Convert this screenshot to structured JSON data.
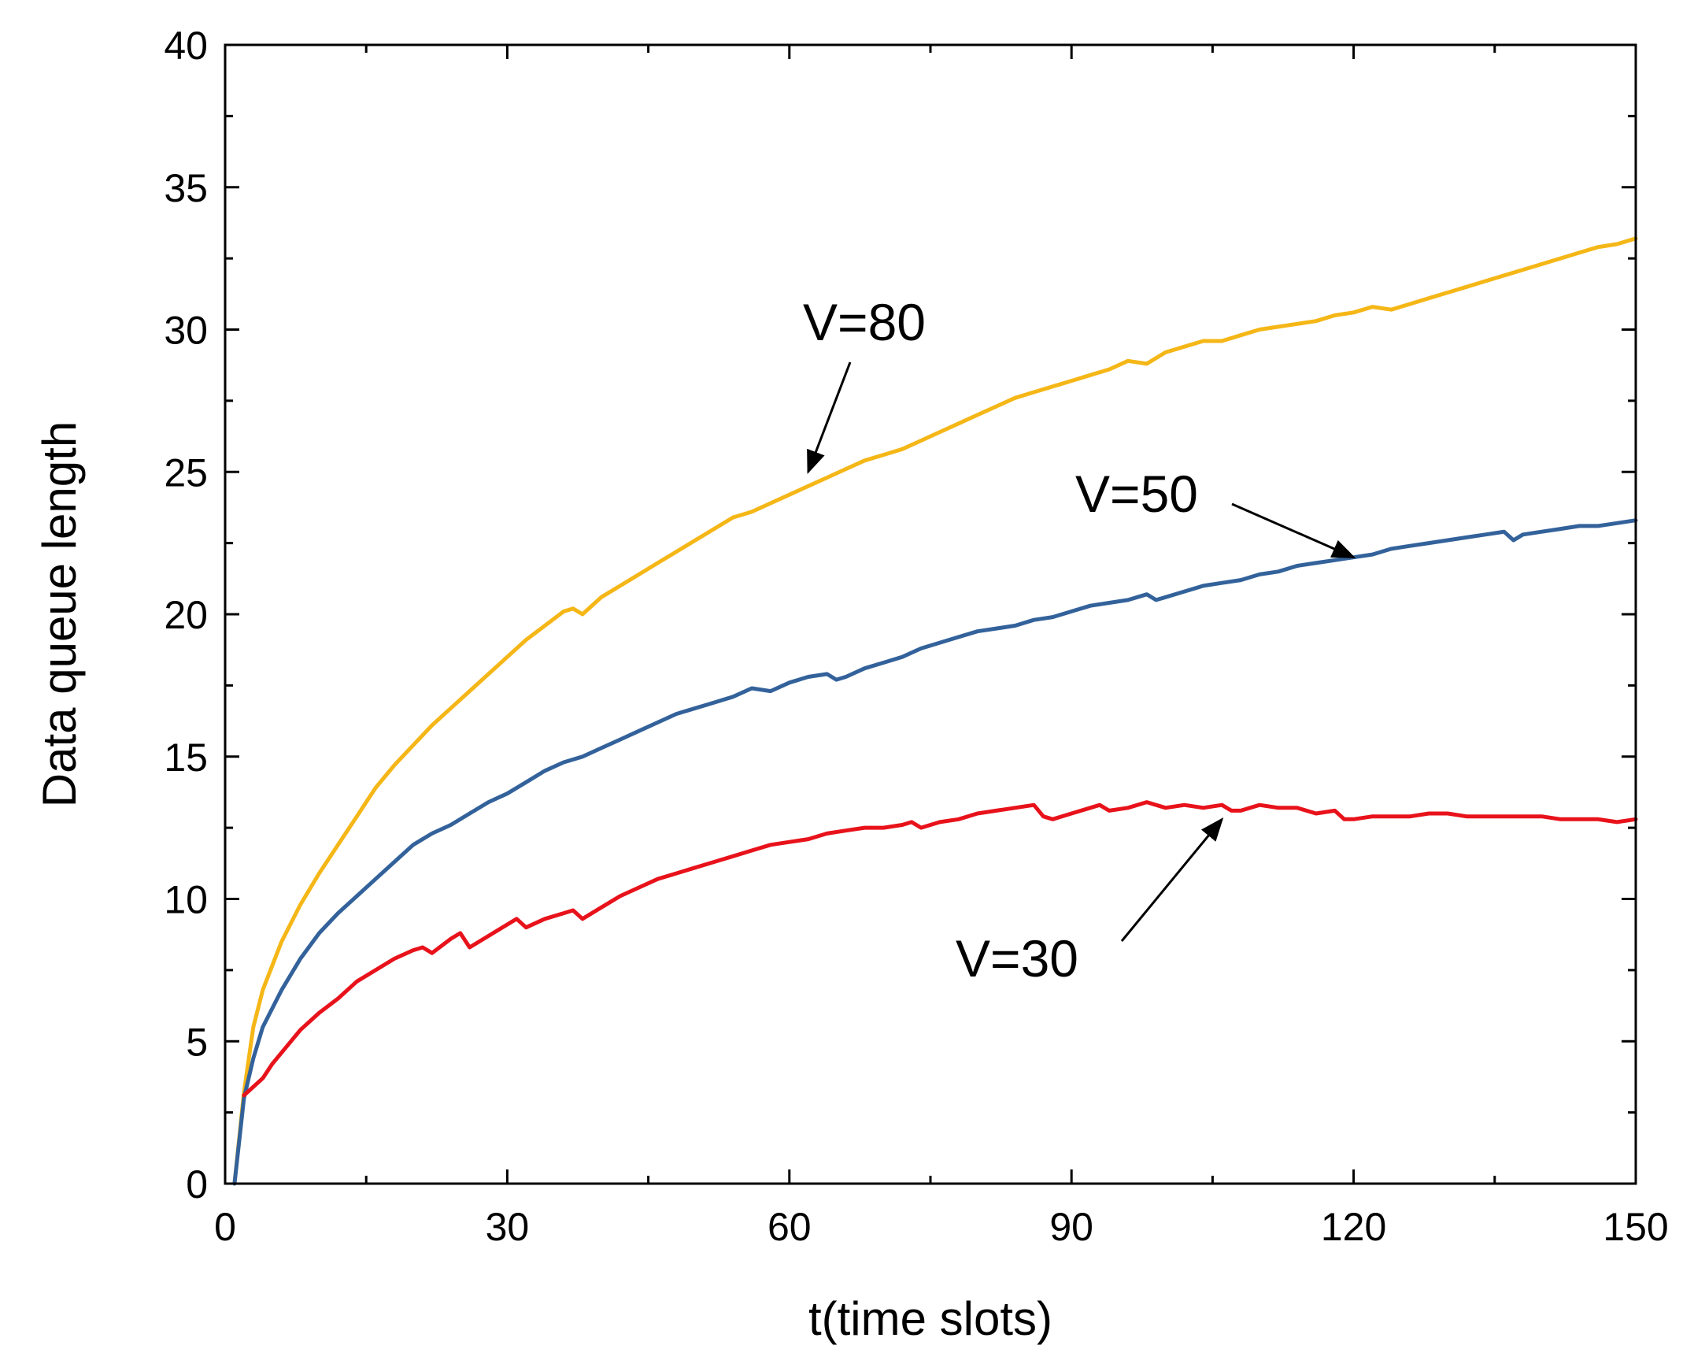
{
  "chart_data": {
    "type": "line",
    "title": "",
    "xlabel": "t(time slots)",
    "ylabel": "Data queue length",
    "xlim": [
      0,
      150
    ],
    "ylim": [
      0,
      40
    ],
    "xticks": [
      0,
      30,
      60,
      90,
      120,
      150
    ],
    "yticks": [
      0,
      5,
      10,
      15,
      20,
      25,
      30,
      35,
      40
    ],
    "grid": false,
    "legend": "none",
    "series": [
      {
        "color": "#f5b717",
        "x": [
          1,
          2,
          3,
          4,
          6,
          8,
          10,
          12,
          14,
          16,
          18,
          20,
          22,
          24,
          26,
          28,
          30,
          32,
          34,
          36,
          37,
          38,
          40,
          42,
          44,
          46,
          48,
          50,
          52,
          54,
          56,
          58,
          60,
          62,
          64,
          66,
          68,
          70,
          72,
          74,
          76,
          78,
          80,
          82,
          84,
          86,
          88,
          90,
          92,
          94,
          96,
          98,
          100,
          102,
          104,
          106,
          108,
          110,
          112,
          114,
          116,
          118,
          120,
          122,
          124,
          126,
          128,
          130,
          132,
          134,
          136,
          138,
          140,
          142,
          144,
          146,
          148,
          150
        ],
        "values": [
          0,
          3.2,
          5.5,
          6.8,
          8.5,
          9.8,
          10.9,
          11.9,
          12.9,
          13.9,
          14.7,
          15.4,
          16.1,
          16.7,
          17.3,
          17.9,
          18.5,
          19.1,
          19.6,
          20.1,
          20.2,
          20.0,
          20.6,
          21.0,
          21.4,
          21.8,
          22.2,
          22.6,
          23.0,
          23.4,
          23.6,
          23.9,
          24.2,
          24.5,
          24.8,
          25.1,
          25.4,
          25.6,
          25.8,
          26.1,
          26.4,
          26.7,
          27.0,
          27.3,
          27.6,
          27.8,
          28.0,
          28.2,
          28.4,
          28.6,
          28.9,
          28.8,
          29.2,
          29.4,
          29.6,
          29.6,
          29.8,
          30.0,
          30.1,
          30.2,
          30.3,
          30.5,
          30.6,
          30.8,
          30.7,
          30.9,
          31.1,
          31.3,
          31.5,
          31.7,
          31.9,
          32.1,
          32.3,
          32.5,
          32.7,
          32.9,
          33.0,
          33.2
        ]
      },
      {
        "color": "#33629b",
        "x": [
          1,
          2,
          3,
          4,
          6,
          8,
          10,
          12,
          14,
          16,
          18,
          20,
          22,
          24,
          26,
          28,
          30,
          32,
          34,
          36,
          38,
          40,
          42,
          44,
          46,
          48,
          50,
          52,
          54,
          56,
          58,
          60,
          62,
          64,
          65,
          66,
          68,
          70,
          72,
          74,
          76,
          78,
          80,
          82,
          84,
          86,
          88,
          90,
          92,
          94,
          96,
          98,
          99,
          100,
          102,
          104,
          106,
          108,
          110,
          112,
          114,
          116,
          118,
          120,
          122,
          124,
          126,
          128,
          130,
          132,
          134,
          136,
          137,
          138,
          140,
          142,
          144,
          146,
          148,
          150
        ],
        "values": [
          0,
          3.0,
          4.4,
          5.5,
          6.8,
          7.9,
          8.8,
          9.5,
          10.1,
          10.7,
          11.3,
          11.9,
          12.3,
          12.6,
          13.0,
          13.4,
          13.7,
          14.1,
          14.5,
          14.8,
          15.0,
          15.3,
          15.6,
          15.9,
          16.2,
          16.5,
          16.7,
          16.9,
          17.1,
          17.4,
          17.3,
          17.6,
          17.8,
          17.9,
          17.7,
          17.8,
          18.1,
          18.3,
          18.5,
          18.8,
          19.0,
          19.2,
          19.4,
          19.5,
          19.6,
          19.8,
          19.9,
          20.1,
          20.3,
          20.4,
          20.5,
          20.7,
          20.5,
          20.6,
          20.8,
          21.0,
          21.1,
          21.2,
          21.4,
          21.5,
          21.7,
          21.8,
          21.9,
          22.0,
          22.1,
          22.3,
          22.4,
          22.5,
          22.6,
          22.7,
          22.8,
          22.9,
          22.6,
          22.8,
          22.9,
          23.0,
          23.1,
          23.1,
          23.2,
          23.3
        ]
      },
      {
        "color": "#e8121b",
        "x": [
          2,
          3,
          4,
          5,
          6,
          8,
          10,
          12,
          14,
          16,
          18,
          20,
          21,
          22,
          24,
          25,
          26,
          28,
          30,
          31,
          32,
          34,
          36,
          37,
          38,
          40,
          42,
          44,
          46,
          48,
          50,
          52,
          54,
          56,
          58,
          60,
          62,
          64,
          66,
          68,
          70,
          72,
          73,
          74,
          76,
          78,
          80,
          82,
          84,
          86,
          87,
          88,
          90,
          92,
          93,
          94,
          96,
          98,
          100,
          102,
          104,
          106,
          107,
          108,
          110,
          112,
          114,
          116,
          118,
          119,
          120,
          122,
          124,
          126,
          128,
          130,
          132,
          134,
          136,
          138,
          140,
          142,
          144,
          146,
          148,
          150
        ],
        "values": [
          3.1,
          3.4,
          3.7,
          4.2,
          4.6,
          5.4,
          6.0,
          6.5,
          7.1,
          7.5,
          7.9,
          8.2,
          8.3,
          8.1,
          8.6,
          8.8,
          8.3,
          8.7,
          9.1,
          9.3,
          9.0,
          9.3,
          9.5,
          9.6,
          9.3,
          9.7,
          10.1,
          10.4,
          10.7,
          10.9,
          11.1,
          11.3,
          11.5,
          11.7,
          11.9,
          12.0,
          12.1,
          12.3,
          12.4,
          12.5,
          12.5,
          12.6,
          12.7,
          12.5,
          12.7,
          12.8,
          13.0,
          13.1,
          13.2,
          13.3,
          12.9,
          12.8,
          13.0,
          13.2,
          13.3,
          13.1,
          13.2,
          13.4,
          13.2,
          13.3,
          13.2,
          13.3,
          13.1,
          13.1,
          13.3,
          13.2,
          13.2,
          13.0,
          13.1,
          12.8,
          12.8,
          12.9,
          12.9,
          12.9,
          13.0,
          13.0,
          12.9,
          12.9,
          12.9,
          12.9,
          12.9,
          12.8,
          12.8,
          12.8,
          12.7,
          12.8
        ]
      }
    ],
    "annotations": [
      {
        "text": "V=80",
        "arrow_to": {
          "x": 62,
          "y": 25.0
        }
      },
      {
        "text": "V=50",
        "arrow_to": {
          "x": 120,
          "y": 22.0
        }
      },
      {
        "text": "V=30",
        "arrow_to": {
          "x": 106,
          "y": 12.8
        }
      }
    ]
  }
}
